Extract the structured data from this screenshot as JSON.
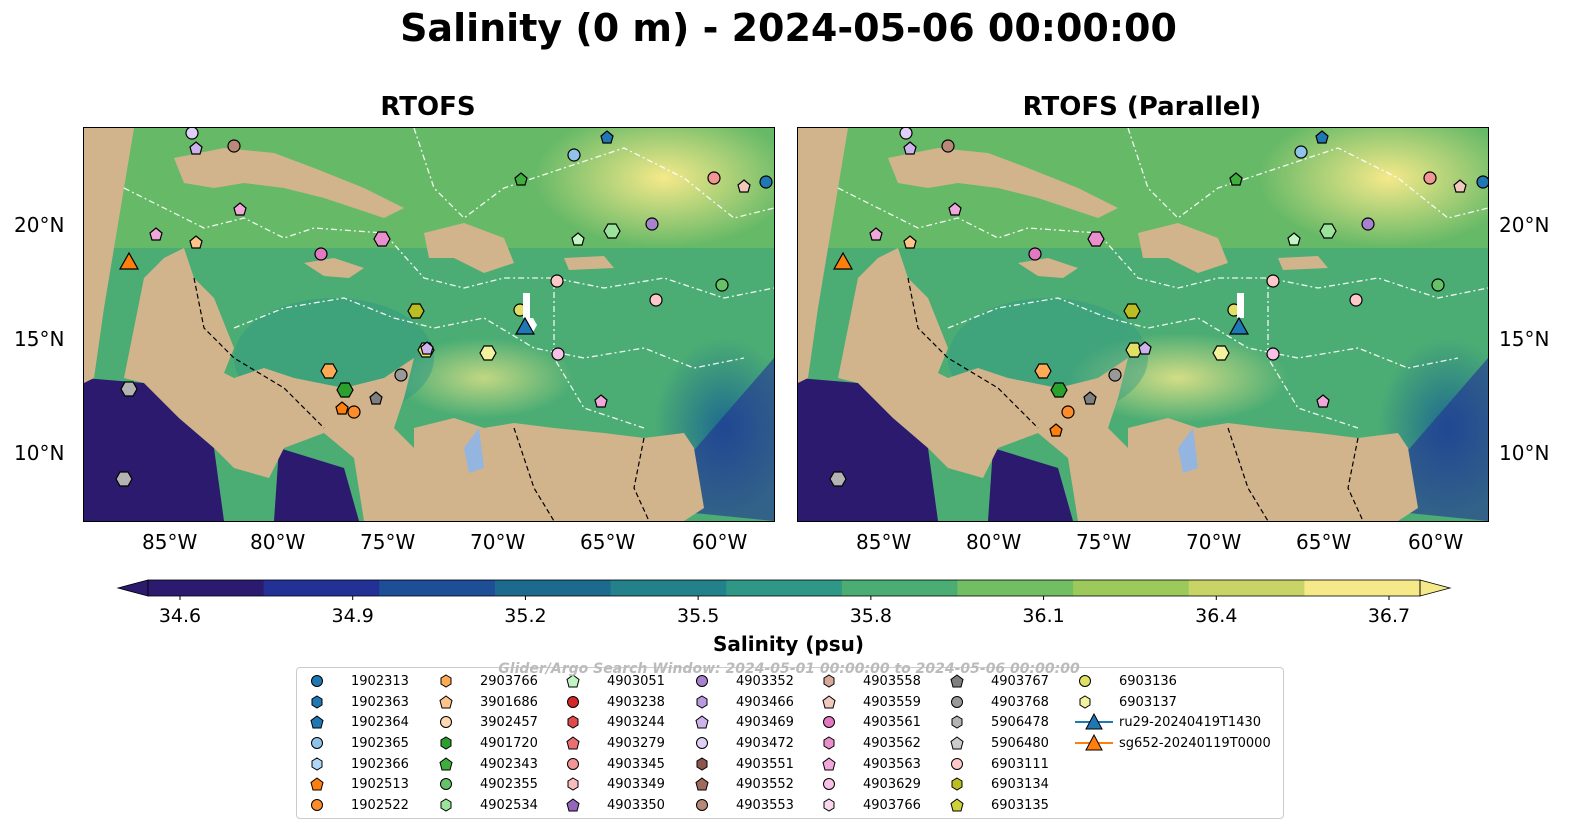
{
  "title": "Salinity (0 m) - 2024-05-06 00:00:00",
  "panels": [
    {
      "title": "RTOFS"
    },
    {
      "title": "RTOFS (Parallel)"
    }
  ],
  "lon_ticks": [
    "85°W",
    "80°W",
    "75°W",
    "70°W",
    "65°W",
    "60°W"
  ],
  "lat_ticks": [
    "20°N",
    "15°N",
    "10°N"
  ],
  "colorbar": {
    "title": "Salinity (psu)",
    "ticks": [
      "34.6",
      "34.9",
      "35.2",
      "35.5",
      "35.8",
      "36.1",
      "36.4",
      "36.7"
    ],
    "range": [
      34.6,
      36.7
    ],
    "colors": [
      "#2b1a6e",
      "#233196",
      "#1e4e95",
      "#1d6a8f",
      "#22818b",
      "#2e9786",
      "#4bad74",
      "#72be63",
      "#9dc95b",
      "#c9d467",
      "#f5e98a"
    ]
  },
  "watermark": "Glider/Argo Search Window: 2024-05-01 00:00:00 to 2024-05-06 00:00:00",
  "map_colors": {
    "land": "#d2b48c",
    "lake": "#94b5e0"
  },
  "legend": [
    {
      "label": "1902313",
      "marker": "circle",
      "color": "#1f77b4"
    },
    {
      "label": "1902363",
      "marker": "hexagon",
      "color": "#1f77b4"
    },
    {
      "label": "1902364",
      "marker": "pentagon",
      "color": "#1f77b4"
    },
    {
      "label": "1902365",
      "marker": "circle",
      "color": "#8fc3ea"
    },
    {
      "label": "1902366",
      "marker": "hexagon",
      "color": "#aed8f5"
    },
    {
      "label": "1902513",
      "marker": "pentagon",
      "color": "#ff7f0e"
    },
    {
      "label": "1902522",
      "marker": "circle",
      "color": "#ff8c2a"
    },
    {
      "label": "2903766",
      "marker": "hexagon",
      "color": "#ffaa55"
    },
    {
      "label": "3901686",
      "marker": "pentagon",
      "color": "#ffc48a"
    },
    {
      "label": "3902457",
      "marker": "circle",
      "color": "#ffd8b0"
    },
    {
      "label": "4901720",
      "marker": "hexagon",
      "color": "#2ca02c"
    },
    {
      "label": "4902343",
      "marker": "pentagon",
      "color": "#3fae3f"
    },
    {
      "label": "4902355",
      "marker": "circle",
      "color": "#66c266"
    },
    {
      "label": "4902534",
      "marker": "hexagon",
      "color": "#9be39b"
    },
    {
      "label": "4903051",
      "marker": "pentagon",
      "color": "#c3f5c3"
    },
    {
      "label": "4903238",
      "marker": "circle",
      "color": "#d62728"
    },
    {
      "label": "4903244",
      "marker": "hexagon",
      "color": "#e04a4b"
    },
    {
      "label": "4903279",
      "marker": "pentagon",
      "color": "#ea6f70"
    },
    {
      "label": "4903345",
      "marker": "circle",
      "color": "#f29595"
    },
    {
      "label": "4903349",
      "marker": "hexagon",
      "color": "#f8bcbc"
    },
    {
      "label": "4903350",
      "marker": "pentagon",
      "color": "#9467bd"
    },
    {
      "label": "4903352",
      "marker": "circle",
      "color": "#a682cf"
    },
    {
      "label": "4903466",
      "marker": "hexagon",
      "color": "#b99ae0"
    },
    {
      "label": "4903469",
      "marker": "pentagon",
      "color": "#ccb3ec"
    },
    {
      "label": "4903472",
      "marker": "circle",
      "color": "#e0d0f7"
    },
    {
      "label": "4903551",
      "marker": "hexagon",
      "color": "#8c564b"
    },
    {
      "label": "4903552",
      "marker": "pentagon",
      "color": "#a06a5d"
    },
    {
      "label": "4903553",
      "marker": "circle",
      "color": "#b88878"
    },
    {
      "label": "4903558",
      "marker": "hexagon",
      "color": "#d8a898"
    },
    {
      "label": "4903559",
      "marker": "pentagon",
      "color": "#f0c8bc"
    },
    {
      "label": "4903561",
      "marker": "circle",
      "color": "#e377c2"
    },
    {
      "label": "4903562",
      "marker": "hexagon",
      "color": "#ea8fce"
    },
    {
      "label": "4903563",
      "marker": "pentagon",
      "color": "#f0a8da"
    },
    {
      "label": "4903629",
      "marker": "circle",
      "color": "#f7c0e6"
    },
    {
      "label": "4903766",
      "marker": "hexagon",
      "color": "#fbd6f0"
    },
    {
      "label": "4903767",
      "marker": "pentagon",
      "color": "#7f7f7f"
    },
    {
      "label": "4903768",
      "marker": "circle",
      "color": "#999999"
    },
    {
      "label": "5906478",
      "marker": "hexagon",
      "color": "#b3b3b3"
    },
    {
      "label": "5906480",
      "marker": "pentagon",
      "color": "#cccccc"
    },
    {
      "label": "6903111",
      "marker": "circle",
      "color": "#ffc9c9"
    },
    {
      "label": "6903134",
      "marker": "hexagon",
      "color": "#bcbd22"
    },
    {
      "label": "6903135",
      "marker": "pentagon",
      "color": "#cfd03a"
    },
    {
      "label": "6903136",
      "marker": "circle",
      "color": "#e0e066"
    },
    {
      "label": "6903137",
      "marker": "hexagon",
      "color": "#f2f29e"
    },
    {
      "label": "ru29-20240419T1430",
      "marker": "triangle-line",
      "color": "#1f77b4"
    },
    {
      "label": "sg652-20240119T0000",
      "marker": "triangle-line",
      "color": "#ff7f0e"
    }
  ]
}
